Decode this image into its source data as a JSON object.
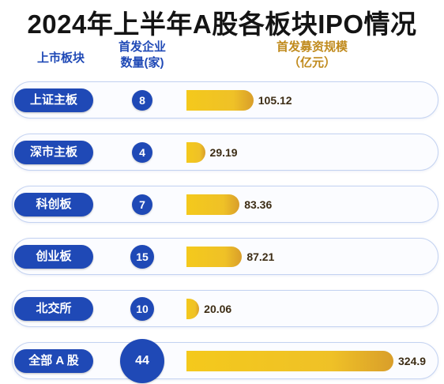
{
  "title": "2024年上半年A股各板块IPO情况",
  "headers": {
    "board": "上市板块",
    "count_line1": "首发企业",
    "count_line2": "数量(家)",
    "amount_line1": "首发募资规模",
    "amount_line2": "（亿元）"
  },
  "colors": {
    "blue": "#1f49b6",
    "gold": "#efc127",
    "header_gold": "#c08a1c"
  },
  "chart_data": {
    "type": "bar",
    "categories": [
      "上证主板",
      "深市主板",
      "科创板",
      "创业板",
      "北交所",
      "全部 A 股"
    ],
    "count_labels": [
      "8",
      "4",
      "7",
      "15",
      "10",
      "44"
    ],
    "series": [
      {
        "name": "首发企业数量(家)",
        "values": [
          8,
          4,
          7,
          15,
          10,
          44
        ]
      },
      {
        "name": "首发募资规模（亿元）",
        "values": [
          105.12,
          29.19,
          83.36,
          87.21,
          20.06,
          324.9
        ]
      }
    ],
    "value_labels": [
      "105.12",
      "29.19",
      "83.36",
      "87.21",
      "20.06",
      "324.9"
    ]
  }
}
